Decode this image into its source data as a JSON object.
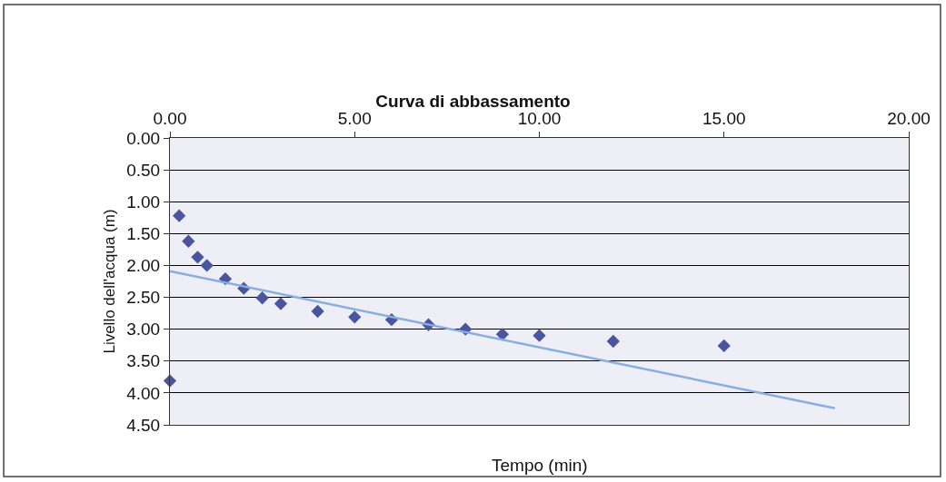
{
  "chart_data": {
    "type": "scatter",
    "title": "Curva di abbassamento",
    "xlabel": "Tempo (min)",
    "ylabel": "Livello dell'acqua (m)",
    "x": [
      0,
      0.25,
      0.5,
      0.75,
      1,
      1.5,
      2,
      2.5,
      3,
      4,
      5,
      6,
      7,
      8,
      9,
      10,
      12,
      15
    ],
    "series": [
      {
        "color": "#4a55a0",
        "marker": "diamond",
        "values": [
          3.81,
          1.22,
          1.62,
          1.87,
          2.0,
          2.21,
          2.36,
          2.51,
          2.6,
          2.72,
          2.81,
          2.85,
          2.93,
          3.0,
          3.08,
          3.1,
          3.19,
          3.26
        ]
      },
      {
        "type": "line",
        "color": "#88aee0",
        "marker": "none",
        "x": [
          0,
          18
        ],
        "values": [
          2.09,
          4.24
        ]
      }
    ],
    "xlim": [
      0,
      20
    ],
    "xticks": [
      {
        "value": 0,
        "label": "0.00"
      },
      {
        "value": 5,
        "label": "5.00"
      },
      {
        "value": 10,
        "label": "10.00"
      },
      {
        "value": 15,
        "label": "15.00"
      },
      {
        "value": 20,
        "label": "20.00"
      }
    ],
    "ylim": [
      4.5,
      0
    ],
    "yticks": [
      {
        "value": 0,
        "label": "0.00"
      },
      {
        "value": 0.5,
        "label": "0.50"
      },
      {
        "value": 1,
        "label": "1.00"
      },
      {
        "value": 1.5,
        "label": "1.50"
      },
      {
        "value": 2,
        "label": "2.00"
      },
      {
        "value": 2.5,
        "label": "2.50"
      },
      {
        "value": 3,
        "label": "3.00"
      },
      {
        "value": 3.5,
        "label": "3.50"
      },
      {
        "value": 4,
        "label": "4.00"
      },
      {
        "value": 4.5,
        "label": "4.50"
      }
    ],
    "grid": "y",
    "legend": false
  }
}
